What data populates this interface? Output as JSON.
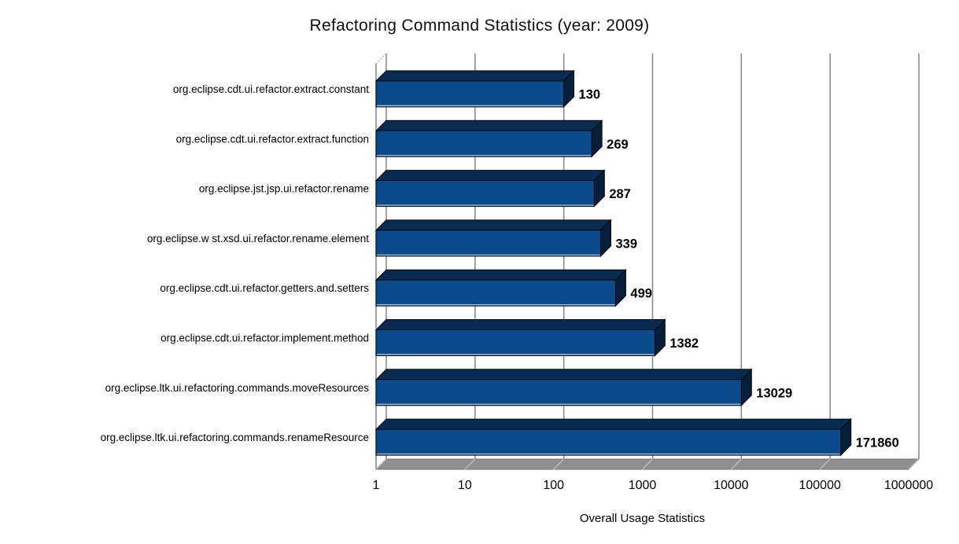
{
  "title": "Refactoring Command Statistics (year: 2009)",
  "chart_data": {
    "type": "bar",
    "orientation": "horizontal",
    "x_scale": "log10",
    "title": "Refactoring Command Statistics (year: 2009)",
    "xlabel": "Overall Usage Statistics",
    "ylabel": "",
    "xlim": [
      1,
      1000000
    ],
    "x_ticks": [
      1,
      10,
      100,
      1000,
      10000,
      100000,
      1000000
    ],
    "x_tick_labels": [
      "1",
      "10",
      "100",
      "1000",
      "10000",
      "100000",
      "1000000"
    ],
    "grid": "vertical-gridlines-on",
    "legend": "none",
    "style": "3d-horizontal-bars",
    "categories": [
      "org.eclipse.cdt.ui.refactor.extract.constant",
      "org.eclipse.cdt.ui.refactor.extract.function",
      "org.eclipse.jst.jsp.ui.refactor.rename",
      "org.eclipse.w st.xsd.ui.refactor.rename.element",
      "org.eclipse.cdt.ui.refactor.getters.and.setters",
      "org.eclipse.cdt.ui.refactor.implement.method",
      "org.eclipse.ltk.ui.refactoring.commands.moveResources",
      "org.eclipse.ltk.ui.refactoring.commands.renameResource"
    ],
    "values": [
      130,
      269,
      287,
      339,
      499,
      1382,
      13029,
      171860
    ],
    "value_labels": [
      "130",
      "269",
      "287",
      "339",
      "499",
      "1382",
      "13029",
      "171860"
    ],
    "colors": {
      "bar_face": "#0B4A8B",
      "bar_top": "#082B52",
      "bar_side": "#051E3C",
      "bar_outline": "#0a0a0a",
      "bar_bottom_highlight": "#c2cedd",
      "gridline": "#8c8c8c",
      "wall_edge": "#8c8c8c",
      "corner_dash": "#aaaaaa",
      "floor": "#8f8f8f",
      "floor_edge": "#6f6f6f",
      "floor_line": "#bdbdbd",
      "text": "#000000",
      "background": "#ffffff"
    }
  }
}
